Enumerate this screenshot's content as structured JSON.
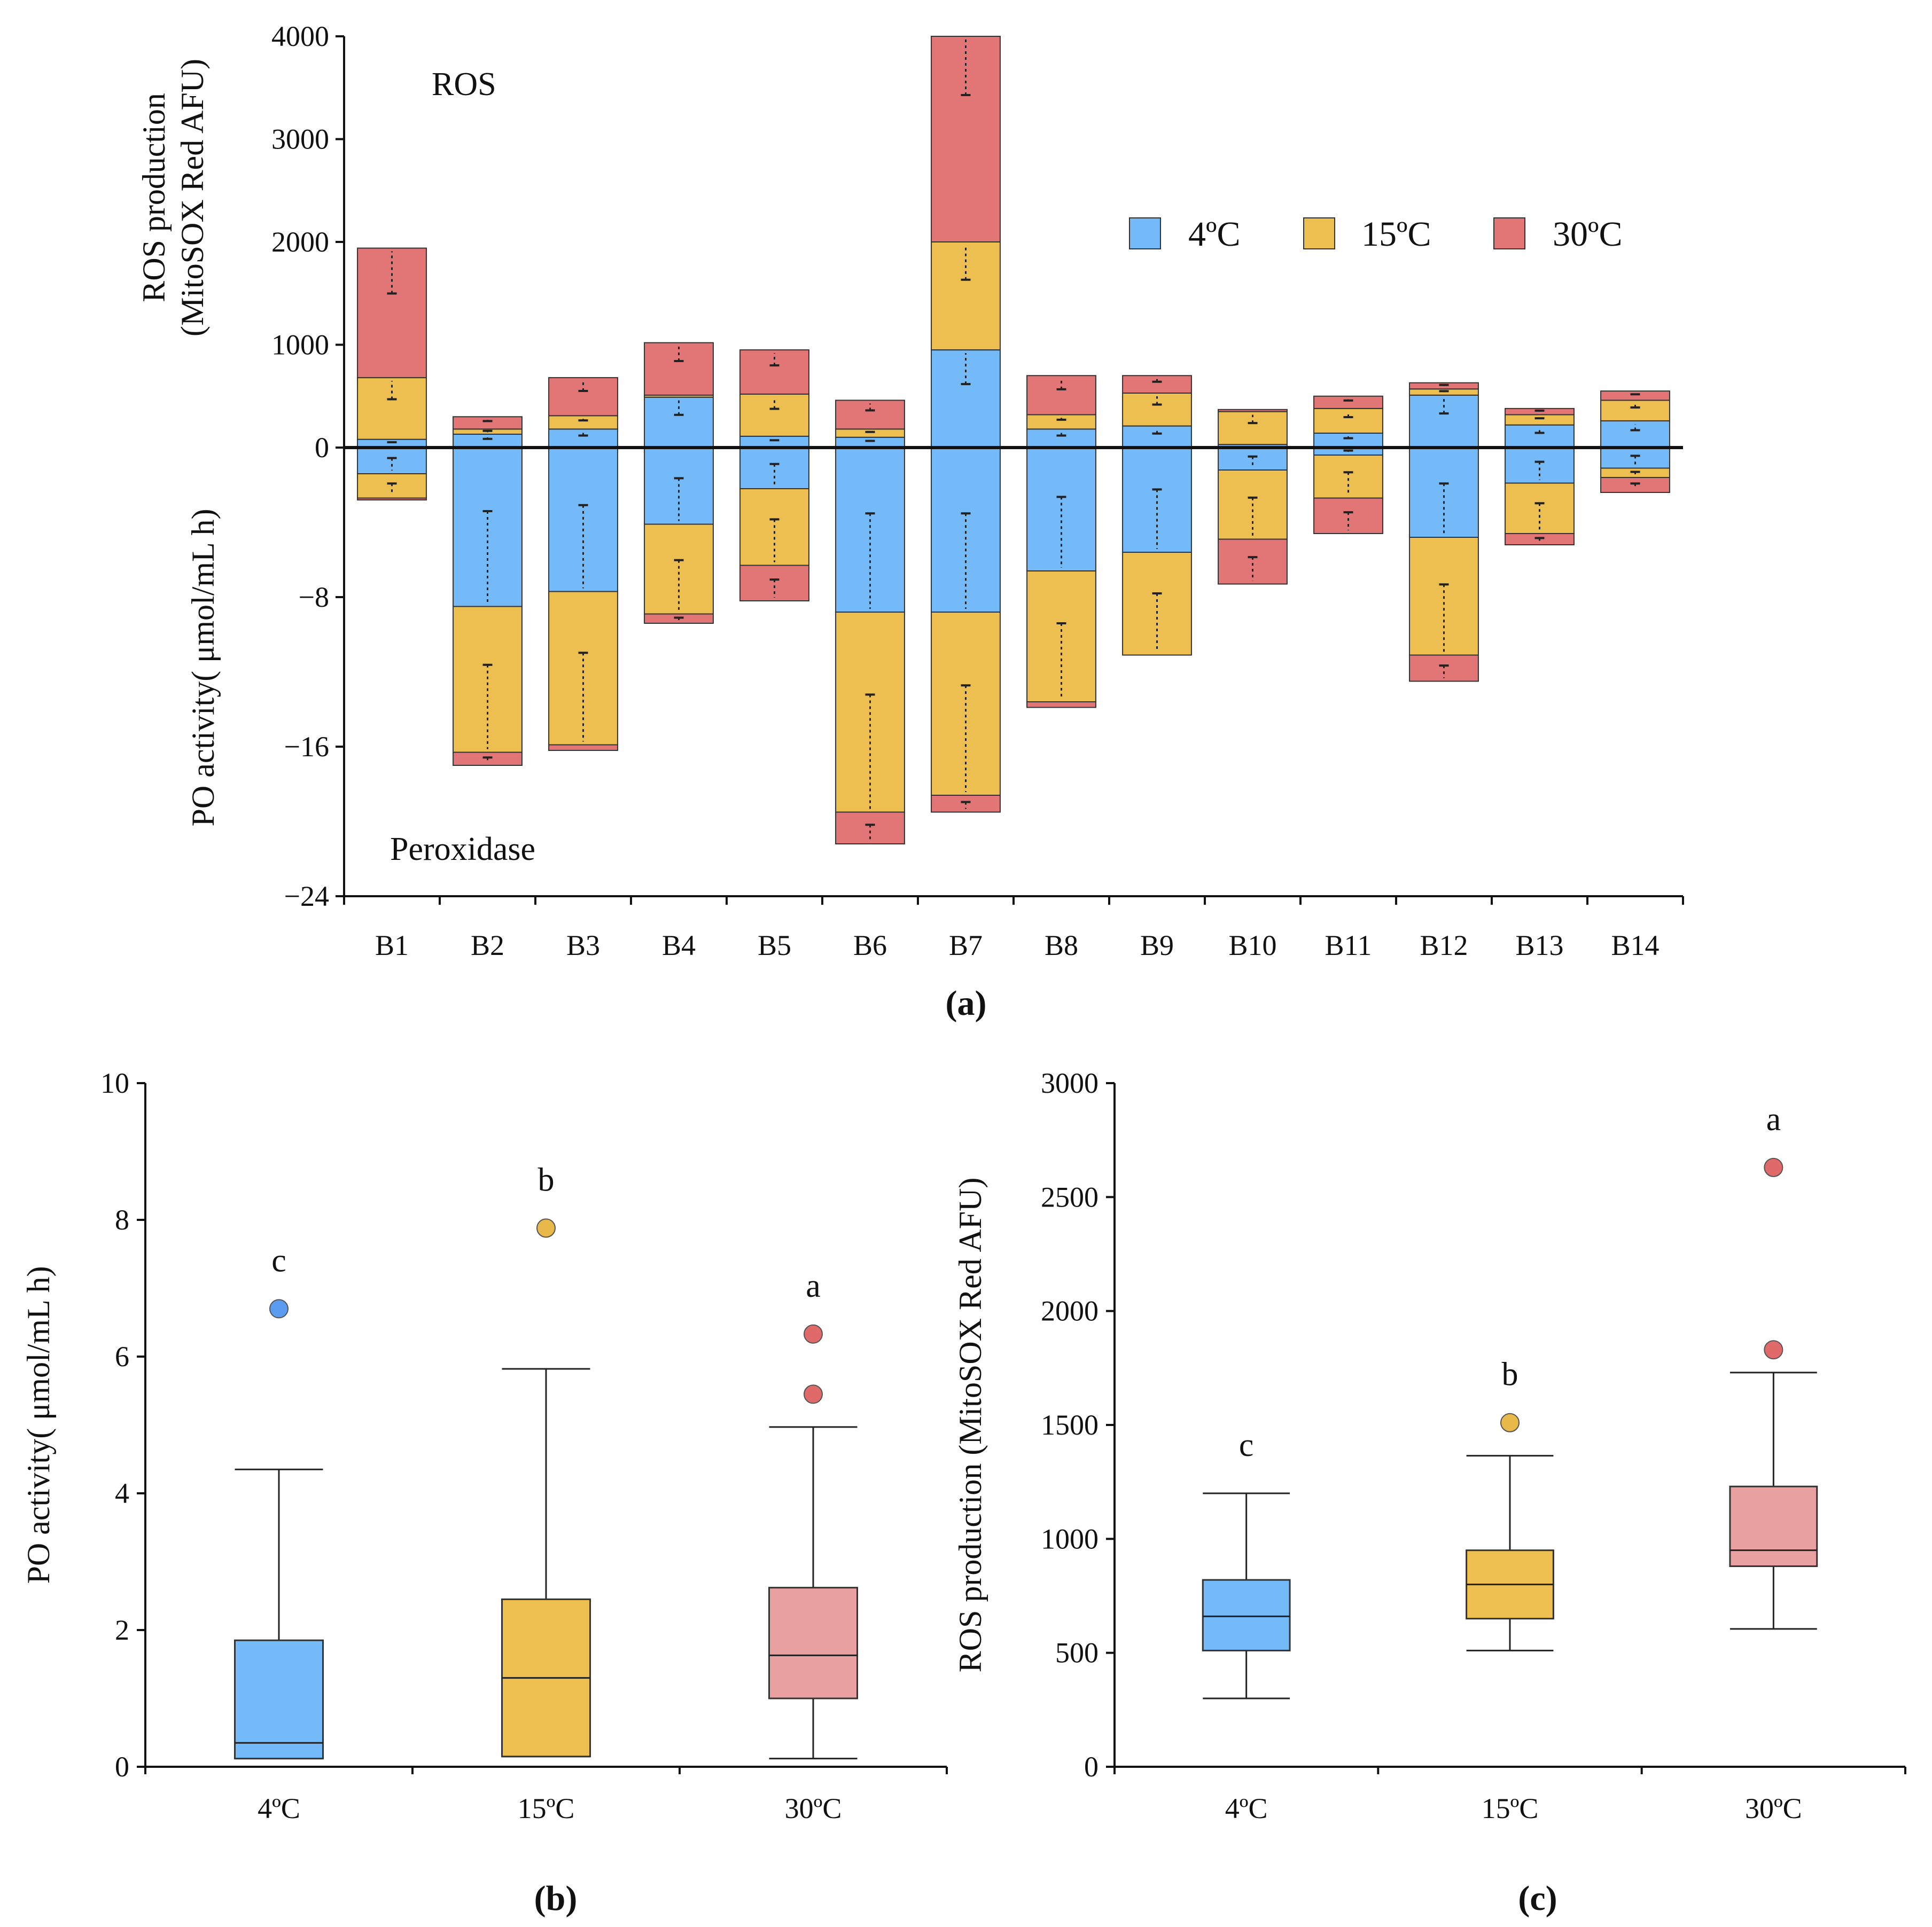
{
  "chart_data": [
    {
      "id": "a",
      "type": "bar",
      "stacked": true,
      "diverging": true,
      "panel_label": "(a)",
      "top_annotation": "ROS",
      "bottom_annotation": "Peroxidase",
      "ylabel_top_line1": "ROS production",
      "ylabel_top_line2": "(MitoSOX Red AFU)",
      "ylabel_bottom": "PO activity( μmol/mL h)",
      "ylim_top": [
        0,
        4000
      ],
      "ylim_bottom": [
        -24,
        0
      ],
      "top_ticks": [
        "4000",
        "3000",
        "2000",
        "1000",
        "0"
      ],
      "top_tick_values": [
        4000,
        3000,
        2000,
        1000,
        0
      ],
      "bottom_ticks": [
        "−8",
        "−16",
        "−24"
      ],
      "bottom_tick_values": [
        -8,
        -16,
        -24
      ],
      "categories": [
        "B1",
        "B2",
        "B3",
        "B4",
        "B5",
        "B6",
        "B7",
        "B8",
        "B9",
        "B10",
        "B11",
        "B12",
        "B13",
        "B14"
      ],
      "legend": [
        "4ºC",
        "15ºC",
        "30ºC"
      ],
      "colors": [
        "#74baf8",
        "#edbf50",
        "#e27676"
      ],
      "ros_series": [
        {
          "name": "4ºC",
          "values": [
            80,
            130,
            180,
            490,
            110,
            100,
            950,
            180,
            210,
            30,
            140,
            510,
            220,
            260
          ]
        },
        {
          "name": "15ºC",
          "values": [
            600,
            50,
            130,
            20,
            410,
            80,
            1050,
            140,
            320,
            320,
            240,
            60,
            100,
            200
          ]
        },
        {
          "name": "30ºC",
          "values": [
            1260,
            120,
            370,
            510,
            430,
            280,
            2000,
            380,
            170,
            20,
            120,
            60,
            60,
            90
          ]
        }
      ],
      "po_series": [
        {
          "name": "4ºC",
          "values": [
            -1.4,
            -8.5,
            -7.7,
            -4.1,
            -2.2,
            -8.8,
            -8.8,
            -6.6,
            -5.6,
            -1.2,
            -0.4,
            -4.8,
            -1.9,
            -1.1
          ]
        },
        {
          "name": "15ºC",
          "values": [
            -1.3,
            -7.8,
            -8.2,
            -4.8,
            -4.1,
            -10.7,
            -9.8,
            -7.0,
            -5.5,
            -3.7,
            -2.3,
            -6.3,
            -2.7,
            -0.5
          ]
        },
        {
          "name": "30ºC",
          "values": [
            -0.1,
            -0.7,
            -0.3,
            -0.5,
            -1.9,
            -1.7,
            -0.9,
            -0.3,
            0,
            -2.4,
            -1.9,
            -1.4,
            -0.6,
            -0.8
          ]
        }
      ]
    },
    {
      "id": "b",
      "type": "box",
      "panel_label": "(b)",
      "ylabel": "PO activity( μmol/mL h)",
      "ylim": [
        0,
        10
      ],
      "yticks": [
        "0",
        "2",
        "4",
        "6",
        "8",
        "10"
      ],
      "ytick_values": [
        0,
        2,
        4,
        6,
        8,
        10
      ],
      "categories": [
        "4ºC",
        "15ºC",
        "30ºC"
      ],
      "colors": [
        "#74baf8",
        "#edbf50",
        "#e8a0a0"
      ],
      "outlier_colors": [
        "#5b9cf0",
        "#e8b84a",
        "#e06a6a"
      ],
      "boxes": [
        {
          "name": "4ºC",
          "whisker_low": 0.12,
          "q1": 0.12,
          "median": 0.35,
          "q3": 1.85,
          "whisker_high": 4.35,
          "outliers": [
            6.7
          ],
          "letter": "c"
        },
        {
          "name": "15ºC",
          "whisker_low": 0.15,
          "q1": 0.15,
          "median": 1.3,
          "q3": 2.45,
          "whisker_high": 5.82,
          "outliers": [
            7.88
          ],
          "letter": "b"
        },
        {
          "name": "30ºC",
          "whisker_low": 0.12,
          "q1": 1.0,
          "median": 1.63,
          "q3": 2.62,
          "whisker_high": 4.97,
          "outliers": [
            6.33,
            5.45
          ],
          "letter": "a"
        }
      ]
    },
    {
      "id": "c",
      "type": "box",
      "panel_label": "(c)",
      "ylabel": "ROS production (MitoSOX Red AFU)",
      "ylim": [
        0,
        3000
      ],
      "yticks": [
        "0",
        "500",
        "1000",
        "1500",
        "2000",
        "2500",
        "3000"
      ],
      "ytick_values": [
        0,
        500,
        1000,
        1500,
        2000,
        2500,
        3000
      ],
      "categories": [
        "4ºC",
        "15ºC",
        "30ºC"
      ],
      "colors": [
        "#74baf8",
        "#edbf50",
        "#e8a0a0"
      ],
      "outlier_colors": [
        "#5b9cf0",
        "#e8b84a",
        "#e06a6a"
      ],
      "boxes": [
        {
          "name": "4ºC",
          "whisker_low": 300,
          "q1": 510,
          "median": 660,
          "q3": 820,
          "whisker_high": 1200,
          "outliers": [],
          "letter": "c"
        },
        {
          "name": "15ºC",
          "whisker_low": 510,
          "q1": 650,
          "median": 800,
          "q3": 950,
          "whisker_high": 1365,
          "outliers": [
            1510
          ],
          "letter": "b"
        },
        {
          "name": "30ºC",
          "whisker_low": 605,
          "q1": 880,
          "median": 950,
          "q3": 1230,
          "whisker_high": 1730,
          "outliers": [
            2630,
            1830
          ],
          "letter": "a"
        }
      ]
    }
  ]
}
